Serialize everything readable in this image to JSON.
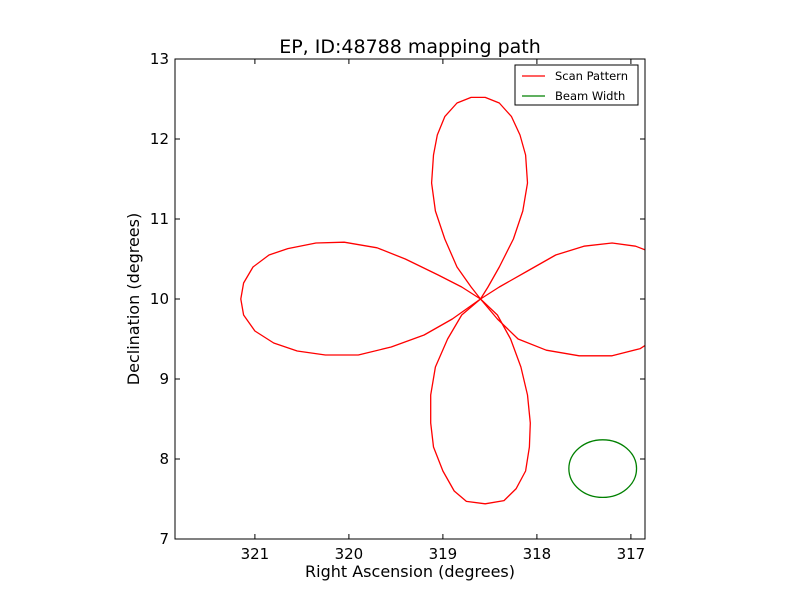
{
  "chart_data": {
    "type": "line",
    "title": "EP, ID:48788 mapping path",
    "xlabel": "Right Ascension (degrees)",
    "ylabel": "Declination (degrees)",
    "xlim": [
      321.85,
      316.85
    ],
    "ylim": [
      7,
      13
    ],
    "x_inverted": true,
    "xticks": [
      321,
      320,
      319,
      318,
      317
    ],
    "yticks": [
      7,
      8,
      9,
      10,
      11,
      12,
      13
    ],
    "grid": false,
    "legend_position": "top-right",
    "series": [
      {
        "name": "Scan Pattern",
        "color": "#ff0000",
        "lobes": [
          {
            "direction": "north",
            "points": [
              [
                318.6,
                10.0
              ],
              [
                318.7,
                10.15
              ],
              [
                318.85,
                10.4
              ],
              [
                318.98,
                10.75
              ],
              [
                319.08,
                11.1
              ],
              [
                319.12,
                11.45
              ],
              [
                319.1,
                11.8
              ],
              [
                319.06,
                12.05
              ],
              [
                318.98,
                12.28
              ],
              [
                318.85,
                12.45
              ],
              [
                318.7,
                12.52
              ],
              [
                318.55,
                12.52
              ],
              [
                318.4,
                12.45
              ],
              [
                318.27,
                12.28
              ],
              [
                318.18,
                12.05
              ],
              [
                318.12,
                11.8
              ],
              [
                318.1,
                11.45
              ],
              [
                318.15,
                11.1
              ],
              [
                318.25,
                10.75
              ],
              [
                318.4,
                10.4
              ],
              [
                318.52,
                10.15
              ],
              [
                318.6,
                10.0
              ]
            ]
          },
          {
            "direction": "east",
            "points": [
              [
                318.6,
                10.0
              ],
              [
                318.8,
                10.15
              ],
              [
                319.05,
                10.3
              ],
              [
                319.4,
                10.5
              ],
              [
                319.7,
                10.64
              ],
              [
                320.05,
                10.71
              ],
              [
                320.35,
                10.7
              ],
              [
                320.65,
                10.63
              ],
              [
                320.85,
                10.55
              ],
              [
                321.02,
                10.4
              ],
              [
                321.12,
                10.2
              ],
              [
                321.15,
                10.0
              ],
              [
                321.12,
                9.8
              ],
              [
                321.0,
                9.6
              ],
              [
                320.8,
                9.45
              ],
              [
                320.55,
                9.35
              ],
              [
                320.25,
                9.3
              ],
              [
                319.9,
                9.3
              ],
              [
                319.55,
                9.4
              ],
              [
                319.2,
                9.55
              ],
              [
                318.9,
                9.75
              ],
              [
                318.6,
                10.0
              ]
            ]
          },
          {
            "direction": "south",
            "points": [
              [
                318.6,
                10.0
              ],
              [
                318.8,
                9.8
              ],
              [
                318.95,
                9.5
              ],
              [
                319.08,
                9.15
              ],
              [
                319.13,
                8.8
              ],
              [
                319.13,
                8.45
              ],
              [
                319.1,
                8.15
              ],
              [
                319.0,
                7.85
              ],
              [
                318.88,
                7.6
              ],
              [
                318.75,
                7.47
              ],
              [
                318.55,
                7.44
              ],
              [
                318.35,
                7.48
              ],
              [
                318.22,
                7.63
              ],
              [
                318.12,
                7.85
              ],
              [
                318.08,
                8.15
              ],
              [
                318.07,
                8.45
              ],
              [
                318.1,
                8.8
              ],
              [
                318.17,
                9.15
              ],
              [
                318.28,
                9.5
              ],
              [
                318.42,
                9.8
              ],
              [
                318.6,
                10.0
              ]
            ]
          },
          {
            "direction": "west",
            "points": [
              [
                318.6,
                10.0
              ],
              [
                318.4,
                10.15
              ],
              [
                318.1,
                10.35
              ],
              [
                317.8,
                10.55
              ],
              [
                317.5,
                10.66
              ],
              [
                317.2,
                10.7
              ],
              [
                316.95,
                10.66
              ],
              [
                316.75,
                10.57
              ],
              [
                316.59,
                10.45
              ],
              [
                316.5,
                10.3
              ],
              [
                316.46,
                10.1
              ],
              [
                316.47,
                9.9
              ],
              [
                316.55,
                9.7
              ],
              [
                316.72,
                9.52
              ],
              [
                316.9,
                9.38
              ],
              [
                317.2,
                9.29
              ],
              [
                317.55,
                9.29
              ],
              [
                317.9,
                9.36
              ],
              [
                318.2,
                9.5
              ],
              [
                318.42,
                9.75
              ],
              [
                318.6,
                10.0
              ]
            ]
          }
        ]
      },
      {
        "name": "Beam Width",
        "color": "#008000",
        "center": [
          317.3,
          7.88
        ],
        "radius_deg": 0.36
      }
    ]
  }
}
